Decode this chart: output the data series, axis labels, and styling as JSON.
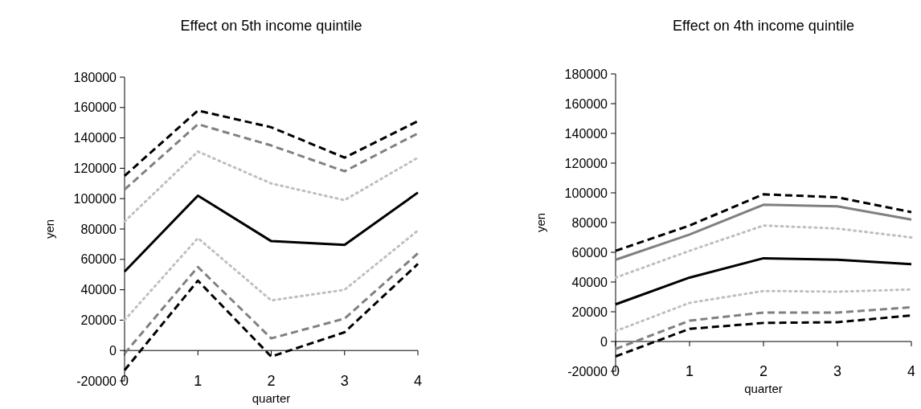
{
  "chart_data": [
    {
      "type": "line",
      "title": "Effect on 5th income quintile",
      "xlabel": "quarter",
      "ylabel": "yen",
      "categories": [
        "0",
        "1",
        "2",
        "3",
        "4"
      ],
      "ylim": [
        -20000,
        180000
      ],
      "yticks": [
        -20000,
        0,
        20000,
        40000,
        60000,
        80000,
        100000,
        120000,
        140000,
        160000,
        180000
      ],
      "grid": false,
      "marker": "none",
      "series": [
        {
          "color": "#000000",
          "line_style": "dashed",
          "values": [
            115000,
            158000,
            147000,
            127000,
            151000
          ]
        },
        {
          "color": "#808080",
          "line_style": "dashed",
          "values": [
            106000,
            149000,
            135000,
            118000,
            143000
          ]
        },
        {
          "color": "#bfbfbf",
          "line_style": "dotted",
          "values": [
            85000,
            131000,
            110000,
            99000,
            127000
          ]
        },
        {
          "color": "#000000",
          "line_style": "solid",
          "values": [
            52000,
            102000,
            72000,
            69500,
            104000
          ]
        },
        {
          "color": "#bfbfbf",
          "line_style": "dotted",
          "values": [
            20000,
            74000,
            33000,
            40000,
            79000
          ]
        },
        {
          "color": "#808080",
          "line_style": "dashed",
          "values": [
            -2000,
            55000,
            8000,
            21000,
            64000
          ]
        },
        {
          "color": "#000000",
          "line_style": "dashed",
          "values": [
            -13000,
            46000,
            -4000,
            12000,
            57000
          ]
        }
      ]
    },
    {
      "type": "line",
      "title": "Effect on 4th income quintile",
      "xlabel": "quarter",
      "ylabel": "yen",
      "categories": [
        "0",
        "1",
        "2",
        "3",
        "4"
      ],
      "ylim": [
        -20000,
        180000
      ],
      "yticks": [
        -20000,
        0,
        20000,
        40000,
        60000,
        80000,
        100000,
        120000,
        140000,
        160000,
        180000
      ],
      "grid": false,
      "marker": "none",
      "series": [
        {
          "color": "#000000",
          "line_style": "dashed",
          "values": [
            61000,
            78000,
            99000,
            97000,
            87000
          ]
        },
        {
          "color": "#808080",
          "line_style": "solid",
          "values": [
            55000,
            72000,
            92000,
            91000,
            82000
          ]
        },
        {
          "color": "#bfbfbf",
          "line_style": "dotted",
          "values": [
            43000,
            61000,
            78000,
            76000,
            70000
          ]
        },
        {
          "color": "#000000",
          "line_style": "solid",
          "values": [
            25000,
            43000,
            56000,
            55000,
            52000
          ]
        },
        {
          "color": "#bfbfbf",
          "line_style": "dotted",
          "values": [
            7000,
            26000,
            34000,
            33500,
            35000
          ]
        },
        {
          "color": "#808080",
          "line_style": "dashed",
          "values": [
            -5000,
            14000,
            19500,
            19500,
            23000
          ]
        },
        {
          "color": "#000000",
          "line_style": "dashed",
          "values": [
            -10000,
            8500,
            12500,
            13000,
            17500
          ]
        }
      ]
    }
  ]
}
